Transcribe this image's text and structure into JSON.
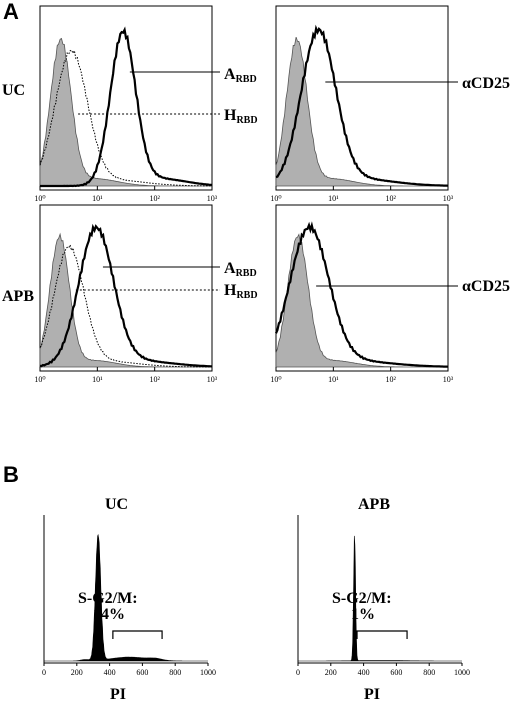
{
  "panels": {
    "a": "A",
    "b": "B"
  },
  "rows": {
    "uc": "UC",
    "apb": "APB"
  },
  "labels": {
    "arbd_main": "A",
    "arbd_sub": "RBD",
    "hrbd_main": "H",
    "hrbd_sub": "RBD",
    "cd25": "αCD25"
  },
  "cycle": {
    "uc_title": "UC",
    "apb_title": "APB",
    "uc_gate_title": "S-G2/M:",
    "uc_gate_value": "14%",
    "apb_gate_title": "S-G2/M:",
    "apb_gate_value": "1%",
    "xlabel_uc": "PI",
    "xlabel_apb": "PI"
  },
  "chart_data": [
    {
      "type": "area",
      "name": "flow-uc-rbd",
      "xscale": "log",
      "xlim": [
        1,
        1000
      ],
      "xticks": [
        "10⁰",
        "10¹",
        "10²",
        "10³"
      ],
      "series": [
        {
          "role": "isotype-control",
          "fill": "#b0b0b0",
          "peak_x": 2.3
        },
        {
          "name": "HRBD",
          "style": "dotted",
          "peak_x": 3.5
        },
        {
          "name": "ARBD",
          "style": "solid-bold",
          "peak_x": 28
        }
      ]
    },
    {
      "type": "area",
      "name": "flow-uc-cd25",
      "xscale": "log",
      "xlim": [
        1,
        1000
      ],
      "xticks": [
        "10⁰",
        "10¹",
        "10²",
        "10³"
      ],
      "series": [
        {
          "role": "isotype-control",
          "fill": "#b0b0b0",
          "peak_x": 2.3
        },
        {
          "name": "αCD25",
          "style": "solid-bold",
          "peak_x": 5.5
        }
      ]
    },
    {
      "type": "area",
      "name": "flow-apb-rbd",
      "xscale": "log",
      "xlim": [
        1,
        1000
      ],
      "xticks": [
        "10⁰",
        "10¹",
        "10²",
        "10³"
      ],
      "series": [
        {
          "role": "isotype-control",
          "fill": "#b0b0b0",
          "peak_x": 2.2
        },
        {
          "name": "HRBD",
          "style": "dotted",
          "peak_x": 3.2
        },
        {
          "name": "ARBD",
          "style": "solid-bold",
          "peak_x": 9.5
        }
      ]
    },
    {
      "type": "area",
      "name": "flow-apb-cd25",
      "xscale": "log",
      "xlim": [
        1,
        1000
      ],
      "xticks": [
        "10⁰",
        "10¹",
        "10²",
        "10³"
      ],
      "series": [
        {
          "role": "isotype-control",
          "fill": "#b0b0b0",
          "peak_x": 2.4
        },
        {
          "name": "αCD25",
          "style": "solid-bold",
          "peak_x": 3.8
        }
      ]
    },
    {
      "type": "area",
      "name": "cycle-uc",
      "xlim": [
        0,
        1000
      ],
      "xticks": [
        "0",
        "200",
        "400",
        "600",
        "800",
        "1000"
      ],
      "xlabel": "PI",
      "peak_x": 330,
      "gate_range": [
        420,
        720
      ],
      "gate_percent": 14
    },
    {
      "type": "area",
      "name": "cycle-apb",
      "xlim": [
        0,
        1000
      ],
      "xticks": [
        "0",
        "200",
        "400",
        "600",
        "800",
        "1000"
      ],
      "xlabel": "PI",
      "peak_x": 345,
      "gate_range": [
        360,
        665
      ],
      "gate_percent": 1
    }
  ]
}
